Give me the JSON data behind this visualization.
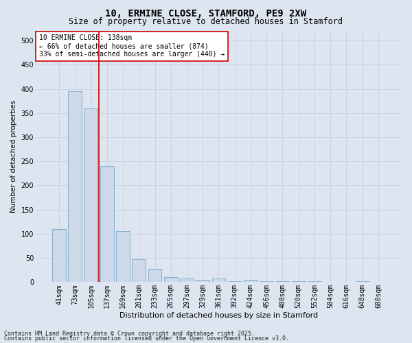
{
  "title": "10, ERMINE CLOSE, STAMFORD, PE9 2XW",
  "subtitle": "Size of property relative to detached houses in Stamford",
  "xlabel": "Distribution of detached houses by size in Stamford",
  "ylabel": "Number of detached properties",
  "categories": [
    "41sqm",
    "73sqm",
    "105sqm",
    "137sqm",
    "169sqm",
    "201sqm",
    "233sqm",
    "265sqm",
    "297sqm",
    "329sqm",
    "361sqm",
    "392sqm",
    "424sqm",
    "456sqm",
    "488sqm",
    "520sqm",
    "552sqm",
    "584sqm",
    "616sqm",
    "648sqm",
    "680sqm"
  ],
  "values": [
    110,
    395,
    360,
    240,
    105,
    47,
    27,
    10,
    8,
    5,
    8,
    2,
    5,
    2,
    2,
    2,
    2,
    0,
    0,
    2,
    0
  ],
  "bar_color": "#cdd9e8",
  "bar_edge_color": "#7aaac8",
  "vline_color": "#cc0000",
  "vline_x_index": 3,
  "annotation_text": "10 ERMINE CLOSE: 138sqm\n← 66% of detached houses are smaller (874)\n33% of semi-detached houses are larger (440) →",
  "annotation_box_color": "#ffffff",
  "annotation_box_edge": "#cc0000",
  "grid_color": "#c8d4e4",
  "background_color": "#dde5f0",
  "footer_line1": "Contains HM Land Registry data © Crown copyright and database right 2025.",
  "footer_line2": "Contains public sector information licensed under the Open Government Licence v3.0.",
  "ylim": [
    0,
    520
  ],
  "yticks": [
    0,
    50,
    100,
    150,
    200,
    250,
    300,
    350,
    400,
    450,
    500
  ],
  "title_fontsize": 10,
  "subtitle_fontsize": 8.5,
  "xlabel_fontsize": 8,
  "ylabel_fontsize": 7.5,
  "tick_fontsize": 7,
  "footer_fontsize": 6,
  "annot_fontsize": 7
}
